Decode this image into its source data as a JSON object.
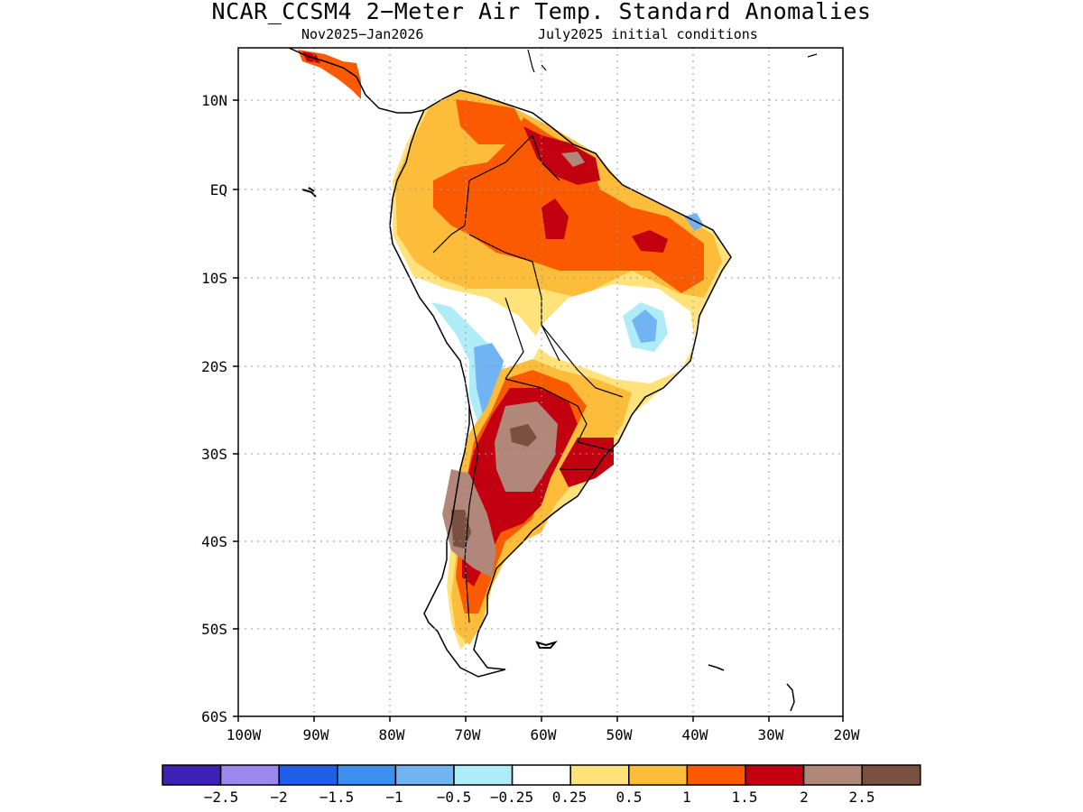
{
  "title": "NCAR_CCSM4 2−Meter Air Temp. Standard Anomalies",
  "subtitle_left": "Nov2025−Jan2026",
  "subtitle_right": "July2025 initial conditions",
  "axes": {
    "lat_labels": [
      "10N",
      "EQ",
      "10S",
      "20S",
      "30S",
      "40S",
      "50S",
      "60S"
    ],
    "lon_labels": [
      "100W",
      "90W",
      "80W",
      "70W",
      "60W",
      "50W",
      "40W",
      "30W",
      "20W"
    ],
    "lat_range": [
      -60,
      15
    ],
    "lon_range": [
      -100,
      -20
    ],
    "grid": "dotted"
  },
  "colorbar": {
    "labels": [
      "−2.5",
      "−2",
      "−1.5",
      "−1",
      "−0.5",
      "−0.25",
      "0.25",
      "0.5",
      "1",
      "1.5",
      "2",
      "2.5"
    ],
    "colors": [
      "#3b22b5",
      "#9d88f2",
      "#1f5fe6",
      "#3a90ec",
      "#70b4f4",
      "#b0ecf7",
      "#ffffff",
      "#ffe27a",
      "#fdbc3a",
      "#fc5a00",
      "#c20010",
      "#b08779",
      "#7a5040"
    ]
  },
  "region": "South America",
  "variable": "2-Meter Air Temperature standard anomaly",
  "colors": {
    "c025": "#ffe27a",
    "c05": "#fdbc3a",
    "c1": "#fc5a00",
    "c15": "#c20010",
    "c2": "#b08779",
    "c25": "#7a5040",
    "n025": "#b0ecf7",
    "n05": "#70b4f4",
    "n1": "#3a90ec"
  }
}
